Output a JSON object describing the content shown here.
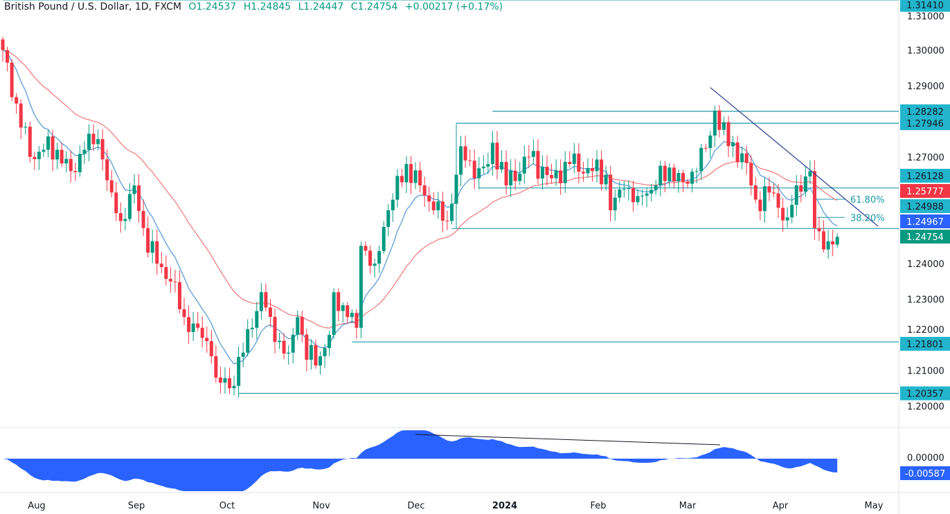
{
  "header": {
    "symbol": "British Pound / U.S. Dollar, 1D, FXCM",
    "open": "O1.24537",
    "high": "H1.24845",
    "low": "L1.24447",
    "close": "C1.24754",
    "change": "+0.00217 (+0.17%)"
  },
  "colors": {
    "up": "#089981",
    "down": "#f23645",
    "fast_ma": "#5b9cd6",
    "slow_ma": "#f08080",
    "levels": "#1a9aa8",
    "trend": "#2a3f8f",
    "osc": "#2962ff"
  },
  "chart_data": {
    "type": "candlestick",
    "title": "British Pound / U.S. Dollar, 1D, FXCM",
    "ylim": [
      1.195,
      1.315
    ],
    "y_ticks": [
      "1.31000",
      "1.30000",
      "1.29000",
      "1.27000",
      "1.24000",
      "1.23000",
      "1.22000",
      "1.21000",
      "1.20000"
    ],
    "x_ticks": [
      "Aug",
      "Sep",
      "Oct",
      "Nov",
      "Dec",
      "2024",
      "Feb",
      "Mar",
      "Apr",
      "May"
    ],
    "close_anchors": [
      [
        0,
        1.3
      ],
      [
        3,
        1.285
      ],
      [
        6,
        1.27
      ],
      [
        9,
        1.272
      ],
      [
        12,
        1.272
      ],
      [
        15,
        1.266
      ],
      [
        18,
        1.272
      ],
      [
        21,
        1.275
      ],
      [
        24,
        1.26
      ],
      [
        26,
        1.252
      ],
      [
        29,
        1.262
      ],
      [
        31,
        1.25
      ],
      [
        34,
        1.24
      ],
      [
        37,
        1.235
      ],
      [
        40,
        1.225
      ],
      [
        43,
        1.222
      ],
      [
        46,
        1.214
      ],
      [
        47,
        1.208
      ],
      [
        50,
        1.205
      ],
      [
        53,
        1.215
      ],
      [
        55,
        1.222
      ],
      [
        57,
        1.232
      ],
      [
        60,
        1.218
      ],
      [
        63,
        1.215
      ],
      [
        65,
        1.225
      ],
      [
        67,
        1.213
      ],
      [
        70,
        1.214
      ],
      [
        72,
        1.22
      ],
      [
        73,
        1.232
      ],
      [
        76,
        1.225
      ],
      [
        78,
        1.222
      ],
      [
        79,
        1.245
      ],
      [
        82,
        1.24
      ],
      [
        85,
        1.255
      ],
      [
        89,
        1.268
      ],
      [
        92,
        1.262
      ],
      [
        95,
        1.255
      ],
      [
        98,
        1.252
      ],
      [
        101,
        1.273
      ],
      [
        104,
        1.264
      ],
      [
        107,
        1.268
      ],
      [
        108,
        1.274
      ],
      [
        111,
        1.262
      ],
      [
        116,
        1.27
      ],
      [
        121,
        1.264
      ],
      [
        125,
        1.268
      ],
      [
        130,
        1.266
      ],
      [
        133,
        1.265
      ],
      [
        134,
        1.255
      ],
      [
        137,
        1.261
      ],
      [
        140,
        1.259
      ],
      [
        144,
        1.262
      ],
      [
        147,
        1.267
      ],
      [
        150,
        1.263
      ],
      [
        153,
        1.266
      ],
      [
        156,
        1.276
      ],
      [
        157,
        1.283
      ],
      [
        160,
        1.273
      ],
      [
        163,
        1.271
      ],
      [
        165,
        1.262
      ],
      [
        166,
        1.258
      ],
      [
        169,
        1.26
      ],
      [
        173,
        1.253
      ],
      [
        175,
        1.262
      ],
      [
        178,
        1.266
      ],
      [
        179,
        1.25
      ],
      [
        181,
        1.244
      ],
      [
        183,
        1.2454
      ],
      [
        184,
        1.24754
      ]
    ],
    "last_candle": {
      "open": 1.24537,
      "high": 1.24845,
      "low": 1.24447,
      "close": 1.24754
    },
    "levels": [
      {
        "label": "1.31410",
        "value": 1.3141,
        "from_day": 0,
        "bg": "#22b5cc"
      },
      {
        "label": "1.28282",
        "value": 1.28282,
        "from_day": 108,
        "bg": "#22b5cc"
      },
      {
        "label": "1.27946",
        "value": 1.27946,
        "from_day": 100,
        "bg": "#22b5cc"
      },
      {
        "label": "1.26128",
        "value": 1.26128,
        "from_day": 105,
        "bg": "#22b5cc"
      },
      {
        "label": "1.24988",
        "value": 1.24988,
        "from_day": 99,
        "bg": "#22b5cc"
      },
      {
        "label": "1.21801",
        "value": 1.21801,
        "from_day": 77,
        "bg": "#22b5cc"
      },
      {
        "label": "1.20357",
        "value": 1.20357,
        "from_day": 52,
        "bg": "#22b5cc"
      }
    ],
    "price_badges": [
      {
        "label": "1.25777",
        "value": 1.25777,
        "bg": "#f23645",
        "pos": 1
      },
      {
        "label": "1.24967",
        "value": 1.24967,
        "bg": "#2962ff",
        "pos": 2
      },
      {
        "label": "1.24754",
        "value": 1.24754,
        "bg": "#089981",
        "pos": 3
      }
    ],
    "fib": [
      {
        "label": "61.80%",
        "value": 1.2581
      },
      {
        "label": "38.20%",
        "value": 1.253
      }
    ],
    "trendline": [
      [
        156,
        1.2895
      ],
      [
        193,
        1.2505
      ]
    ],
    "oscillator": {
      "zero_label": "0.00000",
      "last_label": "-0.00587",
      "last": -0.00587
    }
  }
}
